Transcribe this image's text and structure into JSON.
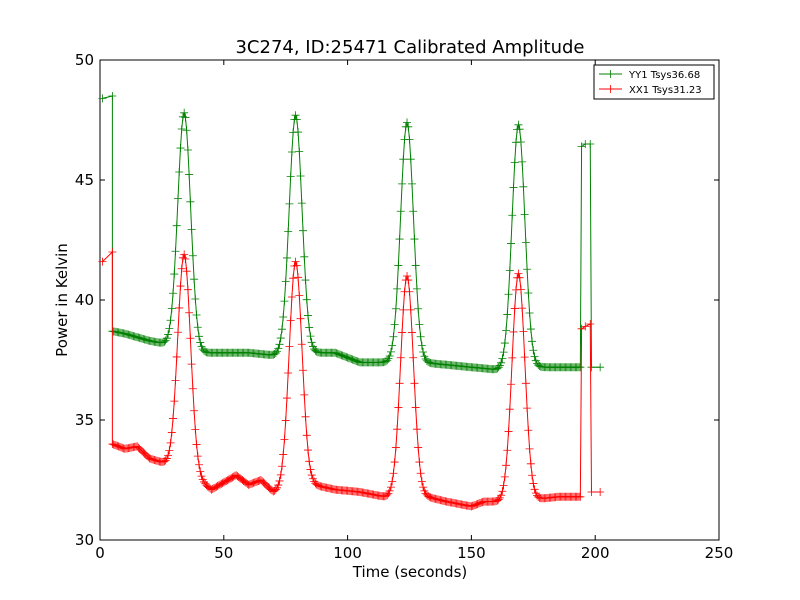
{
  "chart_data": {
    "type": "line",
    "title": "3C274, ID:25471 Calibrated Amplitude",
    "xlabel": "Time (seconds)",
    "ylabel": "Power in Kelvin",
    "xlim": [
      0,
      250
    ],
    "ylim": [
      30,
      50
    ],
    "xticks": [
      0,
      50,
      100,
      150,
      200,
      250
    ],
    "yticks": [
      30,
      35,
      40,
      45,
      50
    ],
    "grid": false,
    "legend_position": "top-right",
    "series": [
      {
        "name": "YY1 Tsys36.68",
        "color": "#008000",
        "marker": "plus",
        "baseline": [
          [
            5,
            38.7
          ],
          [
            10,
            38.6
          ],
          [
            20,
            38.3
          ],
          [
            25,
            38.2
          ],
          [
            40,
            37.8
          ],
          [
            50,
            37.8
          ],
          [
            60,
            37.8
          ],
          [
            70,
            37.7
          ],
          [
            85,
            37.8
          ],
          [
            95,
            37.8
          ],
          [
            105,
            37.4
          ],
          [
            115,
            37.4
          ],
          [
            130,
            37.4
          ],
          [
            140,
            37.3
          ],
          [
            150,
            37.2
          ],
          [
            160,
            37.1
          ],
          [
            175,
            37.2
          ],
          [
            190,
            37.2
          ],
          [
            194,
            37.2
          ]
        ],
        "peaks": [
          {
            "x": 34,
            "y": 47.8
          },
          {
            "x": 79,
            "y": 47.7
          },
          {
            "x": 124,
            "y": 47.4
          },
          {
            "x": 169,
            "y": 47.3
          }
        ],
        "start": [
          [
            1,
            48.4
          ],
          [
            5,
            48.5
          ]
        ],
        "end": [
          [
            194.5,
            46.4
          ],
          [
            196,
            46.5
          ],
          [
            198,
            46.5
          ],
          [
            198.5,
            37.2
          ],
          [
            202,
            37.2
          ]
        ]
      },
      {
        "name": "XX1 Tsys31.23",
        "color": "#ff0000",
        "marker": "plus",
        "baseline": [
          [
            5,
            34.0
          ],
          [
            10,
            33.8
          ],
          [
            15,
            33.9
          ],
          [
            20,
            33.4
          ],
          [
            26,
            33.2
          ],
          [
            40,
            32.5
          ],
          [
            45,
            32.1
          ],
          [
            55,
            32.7
          ],
          [
            60,
            32.3
          ],
          [
            65,
            32.5
          ],
          [
            70,
            32.0
          ],
          [
            86,
            32.3
          ],
          [
            95,
            32.1
          ],
          [
            105,
            32.0
          ],
          [
            115,
            31.8
          ],
          [
            132,
            31.8
          ],
          [
            140,
            31.6
          ],
          [
            150,
            31.4
          ],
          [
            155,
            31.6
          ],
          [
            160,
            31.6
          ],
          [
            176,
            31.7
          ],
          [
            185,
            31.8
          ],
          [
            194,
            31.8
          ]
        ],
        "peaks": [
          {
            "x": 34,
            "y": 41.9
          },
          {
            "x": 79,
            "y": 41.6
          },
          {
            "x": 124,
            "y": 41.0
          },
          {
            "x": 169,
            "y": 41.1
          }
        ],
        "start": [
          [
            1,
            41.6
          ],
          [
            5,
            42.0
          ]
        ],
        "end": [
          [
            194.5,
            38.8
          ],
          [
            196,
            38.9
          ],
          [
            198,
            39.0
          ],
          [
            198.5,
            32.0
          ],
          [
            202,
            32.0
          ]
        ]
      }
    ]
  }
}
